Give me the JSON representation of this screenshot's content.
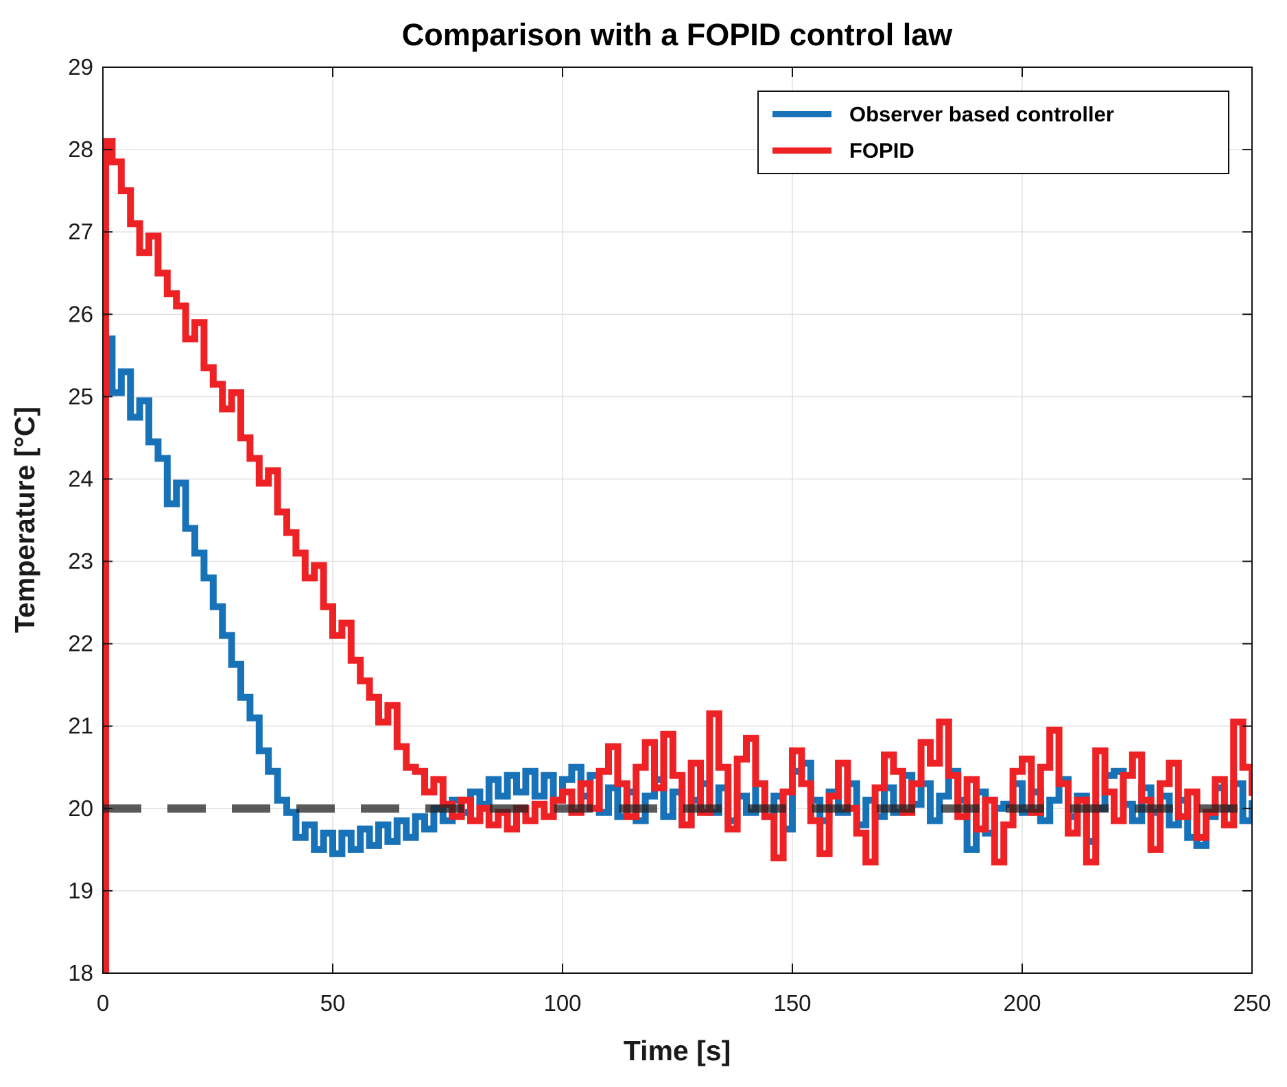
{
  "figure": {
    "title": "Comparison with a FOPID control law",
    "xlabel": "Time [s]",
    "ylabel": "Temperature [°C]"
  },
  "legend": {
    "position": "top-right",
    "items": [
      {
        "label": "Observer based controller",
        "color": "#1872b7"
      },
      {
        "label": "FOPID",
        "color": "#ee2125"
      }
    ]
  },
  "style": {
    "background": "#ffffff",
    "axis_color": "#141414",
    "grid_color": "#e0e0e0",
    "tick_text_color": "#1a1a1a",
    "setpoint_color": "#232323",
    "setpoint_opacity": 0.75,
    "series_line_width": 10,
    "setpoint_line_width": 12
  },
  "chart_data": {
    "type": "line",
    "title": "Comparison with a FOPID control law",
    "xlabel": "Time [s]",
    "ylabel": "Temperature [°C]",
    "xlim": [
      0,
      250
    ],
    "ylim": [
      18,
      29
    ],
    "xticks": [
      0,
      50,
      100,
      150,
      200,
      250
    ],
    "yticks": [
      18,
      19,
      20,
      21,
      22,
      23,
      24,
      25,
      26,
      27,
      28,
      29
    ],
    "grid": true,
    "legend_position": "top-right",
    "interpolation": "step-hold",
    "setpoint": {
      "y": 20,
      "style": "dashed",
      "color": "#232323",
      "dash": [
        56,
        38
      ]
    },
    "series": [
      {
        "name": "Observer based controller",
        "color": "#1872b7",
        "pre": [],
        "t0": 0,
        "dt": 2,
        "values": [
          25.7,
          25.05,
          25.3,
          24.75,
          24.95,
          24.45,
          24.25,
          23.7,
          23.95,
          23.4,
          23.1,
          22.8,
          22.45,
          22.1,
          21.75,
          21.35,
          21.1,
          20.7,
          20.45,
          20.1,
          19.95,
          19.65,
          19.8,
          19.5,
          19.7,
          19.45,
          19.7,
          19.5,
          19.75,
          19.55,
          19.8,
          19.6,
          19.85,
          19.65,
          19.9,
          19.75,
          20.0,
          19.85,
          20.1,
          19.95,
          20.2,
          20.05,
          20.35,
          20.15,
          20.4,
          20.2,
          20.45,
          20.15,
          20.4,
          20.1,
          20.35,
          20.5,
          20.15,
          20.4,
          19.95,
          20.25,
          19.9,
          20.2,
          19.85,
          20.15,
          20.35,
          19.9,
          20.2,
          19.8,
          20.1,
          20.3,
          19.95,
          20.25,
          19.85,
          20.15,
          19.95,
          20.3,
          19.9,
          20.15,
          19.75,
          20.45,
          20.55,
          20.1,
          19.85,
          20.2,
          19.95,
          20.3,
          19.8,
          20.1,
          19.9,
          20.25,
          19.95,
          20.4,
          20.05,
          20.3,
          19.85,
          20.15,
          20.45,
          20.1,
          19.5,
          20.2,
          19.7,
          20.0,
          20.05,
          20.3,
          19.95,
          20.2,
          19.85,
          20.1,
          20.35,
          19.9,
          20.15,
          19.6,
          20.0,
          20.4,
          20.45,
          20.05,
          19.85,
          20.25,
          19.95,
          20.15,
          19.8,
          20.1,
          19.65,
          19.55,
          19.9,
          20.25,
          20.0,
          20.3,
          19.85,
          20.1
        ]
      },
      {
        "name": "FOPID",
        "color": "#ee2125",
        "pre": [
          [
            0,
            18.0
          ],
          [
            0.6,
            28.1
          ]
        ],
        "t0": 2,
        "dt": 2,
        "values": [
          27.85,
          27.5,
          27.1,
          26.75,
          26.95,
          26.5,
          26.25,
          26.1,
          25.7,
          25.9,
          25.35,
          25.15,
          24.85,
          25.05,
          24.5,
          24.25,
          23.95,
          24.1,
          23.6,
          23.35,
          23.1,
          22.8,
          22.95,
          22.45,
          22.1,
          22.25,
          21.8,
          21.55,
          21.35,
          21.05,
          21.25,
          20.75,
          20.5,
          20.45,
          20.2,
          20.35,
          20.05,
          19.9,
          20.1,
          19.85,
          20.0,
          19.8,
          19.95,
          19.75,
          20.0,
          19.85,
          20.05,
          19.9,
          20.1,
          20.2,
          19.95,
          20.3,
          20.0,
          20.45,
          20.75,
          20.3,
          19.9,
          20.5,
          20.8,
          20.25,
          20.9,
          20.4,
          19.8,
          20.55,
          19.95,
          21.15,
          20.5,
          19.75,
          20.6,
          20.85,
          20.3,
          19.9,
          19.4,
          20.2,
          20.7,
          20.3,
          19.85,
          19.45,
          20.15,
          20.55,
          20.0,
          19.7,
          19.35,
          20.25,
          20.65,
          20.45,
          19.95,
          20.3,
          20.8,
          20.55,
          21.05,
          20.4,
          19.9,
          20.35,
          19.75,
          20.1,
          19.35,
          19.8,
          20.45,
          20.6,
          19.95,
          20.5,
          20.95,
          20.3,
          19.7,
          20.1,
          19.35,
          20.7,
          20.2,
          19.85,
          20.4,
          20.65,
          20.1,
          19.5,
          20.3,
          20.55,
          19.9,
          20.2,
          19.65,
          19.95,
          20.35,
          19.8,
          21.05,
          20.5,
          20.15
        ]
      }
    ]
  }
}
